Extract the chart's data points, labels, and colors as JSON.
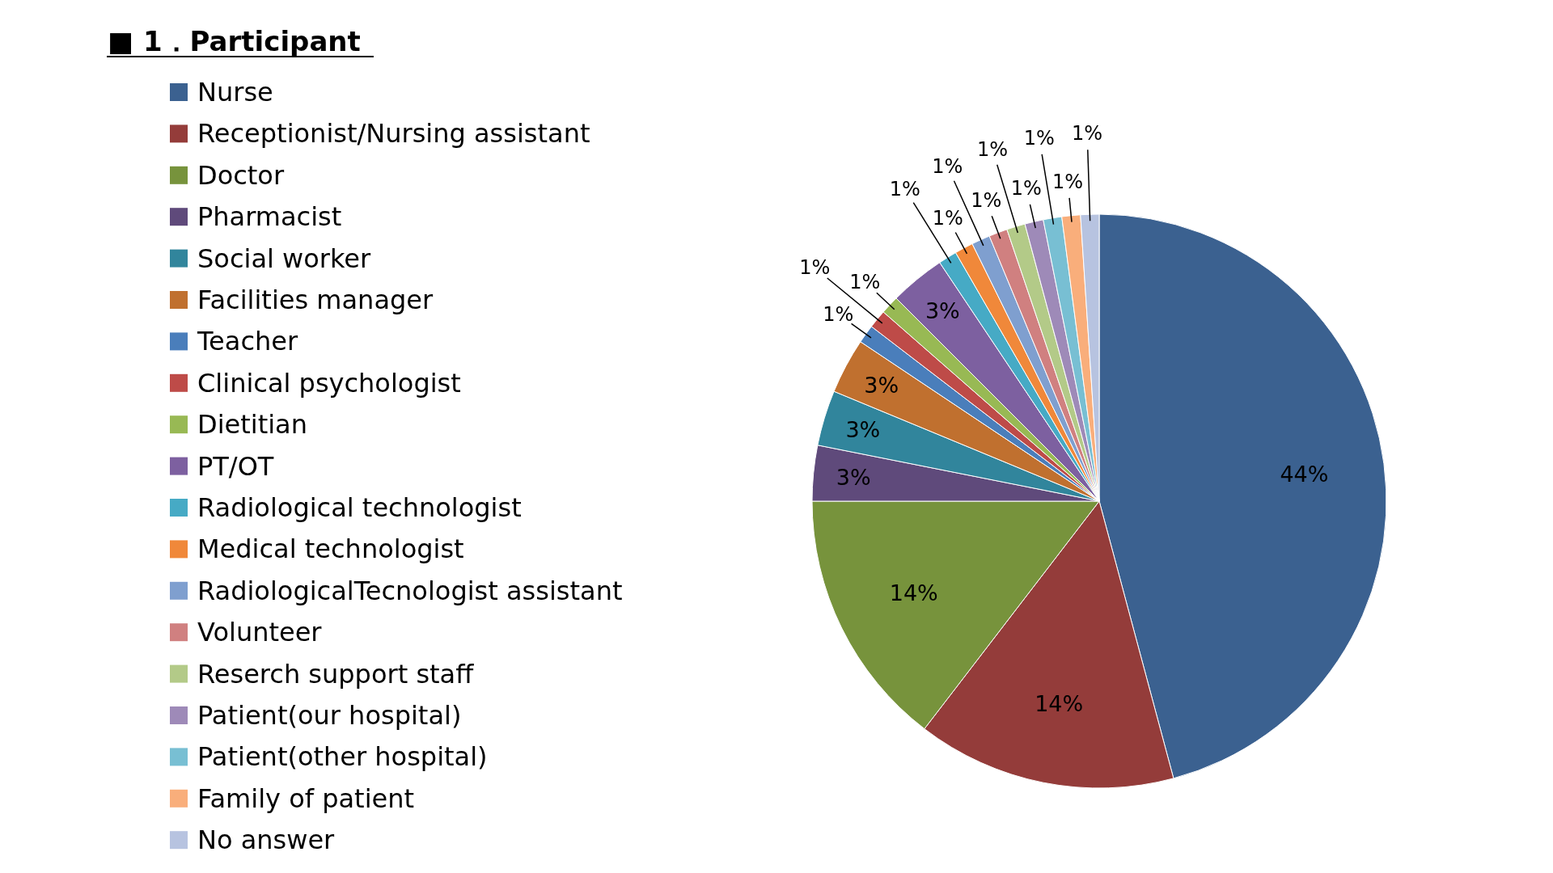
{
  "chart_data": {
    "type": "pie",
    "title": "■ 1．Participant",
    "legend": "left",
    "categories": [
      "Nurse",
      "Receptionist/Nursing assistant",
      "Doctor",
      "Pharmacist",
      "Social worker",
      "Facilities manager",
      "Teacher",
      "Clinical psychologist",
      "Dietitian",
      "PT/OT",
      "Radiological technologist",
      "Medical technologist",
      "RadiologicalTecnologist assistant",
      "Volunteer",
      "Reserch support staff",
      "Patient(our hospital)",
      "Patient(other hospital)",
      "Family of patient",
      "No answer"
    ],
    "values": [
      44,
      14,
      14,
      3,
      3,
      3,
      1,
      1,
      1,
      3,
      1,
      1,
      1,
      1,
      1,
      1,
      1,
      1,
      1
    ],
    "value_labels": [
      "44%",
      "14%",
      "14%",
      "3%",
      "3%",
      "3%",
      "1%",
      "1%",
      "1%",
      "3%",
      "1%",
      "1%",
      "1%",
      "1%",
      "1%",
      "1%",
      "1%",
      "1%",
      "1%"
    ],
    "colors": [
      "#3b6190",
      "#943c3a",
      "#77933c",
      "#5f4a7b",
      "#31859c",
      "#c0702f",
      "#4a7ebb",
      "#be4b48",
      "#98b954",
      "#7d60a0",
      "#46aac5",
      "#f0883a",
      "#7f9fcf",
      "#d08080",
      "#b3ca88",
      "#9e8ab8",
      "#78bfd3",
      "#f9ae7b",
      "#b7c3e0"
    ]
  }
}
